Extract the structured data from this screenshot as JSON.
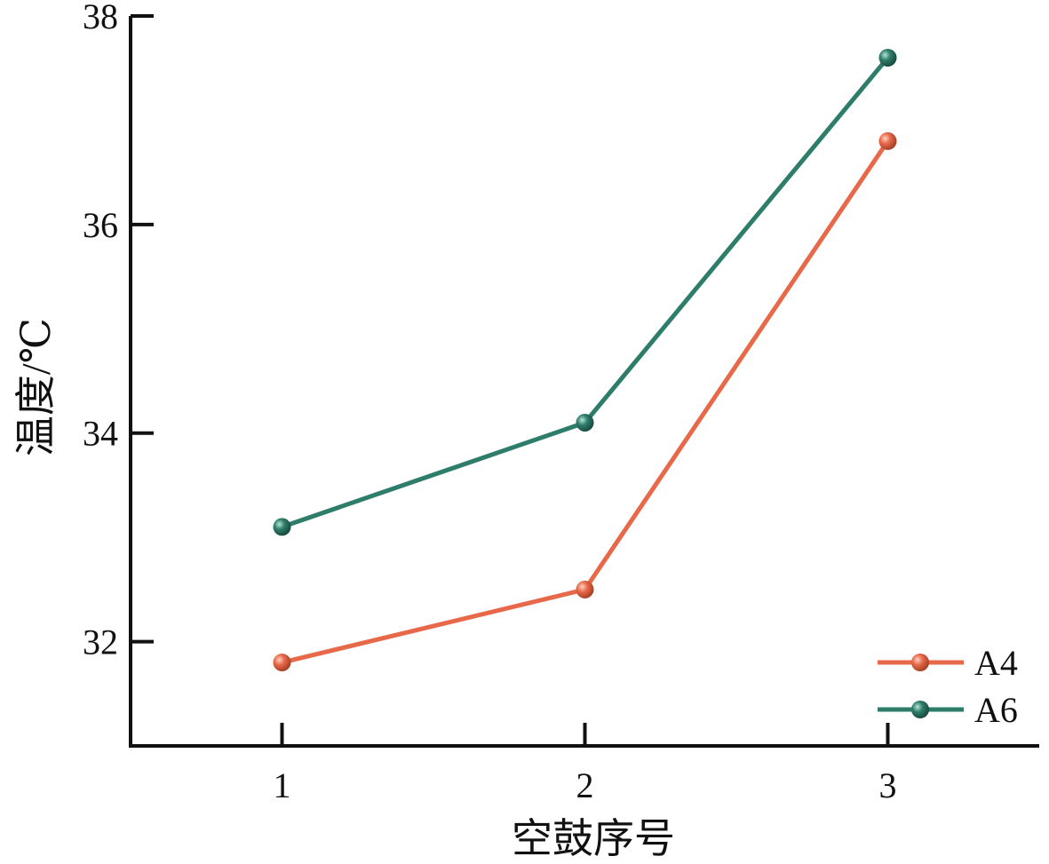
{
  "chart_data": {
    "type": "line",
    "xlabel": "空鼓序号",
    "ylabel": "温度/℃",
    "x": [
      1,
      2,
      3
    ],
    "xticks": [
      "1",
      "2",
      "3"
    ],
    "xlim": [
      0.5,
      3.5
    ],
    "ylim": [
      31,
      38
    ],
    "yticks": [
      "32",
      "34",
      "36",
      "38"
    ],
    "yticks_values": [
      32,
      34,
      36,
      38
    ],
    "grid": false,
    "legend_position": "bottom-right",
    "series": [
      {
        "name": "A4",
        "color": "#e8694a",
        "values": [
          31.8,
          32.5,
          36.8
        ]
      },
      {
        "name": "A6",
        "color": "#2e7d6b",
        "values": [
          33.1,
          34.1,
          37.6
        ]
      }
    ]
  }
}
